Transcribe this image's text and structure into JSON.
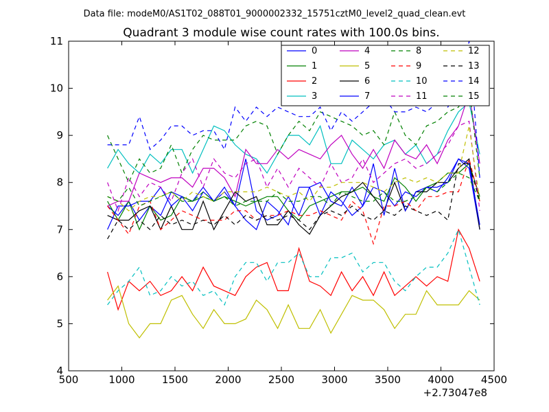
{
  "chart_data": {
    "type": "line",
    "suptitle": "Data file: modeM0/AS1T02_088T01_9000002332_15751cztM0_level2_quad_clean.evt",
    "title": "Quadrant 3 module wise count rates with 100.0s bins.",
    "xlabel": "",
    "ylabel": "",
    "x_offset_label": "+2.73047e8",
    "xlim": [
      500,
      4500
    ],
    "ylim": [
      4,
      11
    ],
    "xticks": [
      500,
      1000,
      1500,
      2000,
      2500,
      3000,
      3500,
      4000,
      4500
    ],
    "yticks": [
      4,
      5,
      6,
      7,
      8,
      9,
      10,
      11
    ],
    "legend_position": "top-right",
    "legend_columns": 4,
    "x": [
      865,
      965,
      1065,
      1165,
      1265,
      1365,
      1465,
      1565,
      1665,
      1765,
      1865,
      1965,
      2065,
      2165,
      2265,
      2365,
      2465,
      2565,
      2665,
      2765,
      2865,
      2965,
      3065,
      3165,
      3265,
      3365,
      3465,
      3565,
      3665,
      3765,
      3865,
      3965,
      4065,
      4165,
      4265,
      4365
    ],
    "series": [
      {
        "name": "0",
        "color": "#0000ff",
        "dash": "solid",
        "values": [
          7.5,
          7.3,
          7.6,
          7.2,
          7.5,
          7.3,
          7.8,
          7.7,
          7.6,
          7.9,
          7.6,
          7.9,
          7.5,
          8.5,
          7.4,
          7.2,
          7.3,
          7.7,
          7.3,
          7.9,
          8.0,
          7.6,
          7.5,
          7.9,
          7.5,
          7.9,
          7.8,
          7.5,
          7.8,
          7.7,
          7.9,
          7.8,
          8.1,
          8.5,
          8.3,
          7.0
        ]
      },
      {
        "name": "1",
        "color": "#008000",
        "dash": "solid",
        "values": [
          7.6,
          7.2,
          7.6,
          7.0,
          7.5,
          7.2,
          7.3,
          7.7,
          7.6,
          7.7,
          7.6,
          7.7,
          7.6,
          7.5,
          7.6,
          7.7,
          7.7,
          7.4,
          7.2,
          7.5,
          7.6,
          7.7,
          7.8,
          7.8,
          7.9,
          7.7,
          7.6,
          8.1,
          7.9,
          7.6,
          7.9,
          8.0,
          8.2,
          8.2,
          8.4,
          7.7
        ]
      },
      {
        "name": "2",
        "color": "#ff0000",
        "dash": "solid",
        "values": [
          6.1,
          5.3,
          5.9,
          5.7,
          5.9,
          5.6,
          5.7,
          6.0,
          5.7,
          6.2,
          5.8,
          5.7,
          5.6,
          6.0,
          6.2,
          6.3,
          5.7,
          5.7,
          6.6,
          5.9,
          5.8,
          5.6,
          6.1,
          5.7,
          6.0,
          5.6,
          6.1,
          5.6,
          5.8,
          6.0,
          5.8,
          6.0,
          5.9,
          7.0,
          6.6,
          5.9
        ]
      },
      {
        "name": "3",
        "color": "#00bfbf",
        "dash": "solid",
        "values": [
          8.3,
          8.7,
          8.4,
          8.2,
          8.6,
          8.4,
          8.7,
          8.7,
          8.2,
          8.7,
          9.2,
          9.1,
          8.8,
          8.6,
          8.5,
          8.2,
          8.6,
          9.0,
          9.0,
          8.8,
          9.2,
          8.4,
          8.4,
          8.9,
          8.7,
          8.5,
          8.8,
          8.9,
          8.6,
          8.8,
          8.4,
          8.6,
          9.1,
          9.5,
          9.7,
          8.6
        ]
      },
      {
        "name": "4",
        "color": "#bf00bf",
        "dash": "solid",
        "values": [
          7.5,
          7.6,
          7.6,
          8.2,
          8.1,
          8.0,
          8.1,
          8.1,
          7.9,
          8.3,
          8.3,
          8.1,
          7.7,
          8.7,
          8.4,
          8.4,
          8.7,
          8.5,
          8.7,
          8.6,
          8.5,
          8.8,
          9.0,
          8.6,
          8.3,
          8.7,
          8.3,
          8.9,
          8.6,
          8.5,
          8.8,
          8.4,
          8.9,
          9.2,
          9.9,
          8.4
        ]
      },
      {
        "name": "5",
        "color": "#bfbf00",
        "dash": "solid",
        "values": [
          5.5,
          5.8,
          5.0,
          4.7,
          5.0,
          5.0,
          5.5,
          5.6,
          5.2,
          4.9,
          5.3,
          5.0,
          5.0,
          5.1,
          5.5,
          5.3,
          4.9,
          5.4,
          4.9,
          4.9,
          5.3,
          4.8,
          5.2,
          5.6,
          5.5,
          5.5,
          5.3,
          4.9,
          5.2,
          5.2,
          5.7,
          5.4,
          5.4,
          5.4,
          5.7,
          5.5
        ]
      },
      {
        "name": "6",
        "color": "#000000",
        "dash": "solid",
        "values": [
          7.3,
          7.2,
          7.2,
          7.4,
          7.5,
          7.0,
          7.5,
          7.0,
          7.0,
          7.6,
          7.0,
          7.4,
          7.8,
          7.6,
          7.7,
          7.1,
          7.1,
          7.4,
          7.1,
          6.9,
          7.3,
          7.5,
          7.7,
          7.8,
          8.0,
          7.7,
          7.4,
          8.0,
          7.4,
          7.8,
          7.8,
          8.0,
          8.0,
          8.3,
          8.5,
          7.0
        ]
      },
      {
        "name": "7",
        "color": "#0000ff",
        "dash": "solid",
        "values": [
          7.0,
          7.5,
          7.5,
          7.6,
          7.6,
          7.9,
          7.5,
          7.7,
          7.4,
          7.8,
          7.6,
          7.8,
          7.5,
          7.2,
          7.0,
          7.6,
          7.4,
          7.1,
          7.9,
          7.9,
          7.3,
          7.8,
          7.6,
          7.3,
          7.5,
          8.4,
          7.3,
          8.3,
          7.4,
          7.8,
          7.9,
          7.9,
          8.0,
          8.5,
          8.4,
          7.1
        ]
      },
      {
        "name": "8",
        "color": "#008000",
        "dash": "dashed",
        "values": [
          9.0,
          8.5,
          8.0,
          8.5,
          8.2,
          8.3,
          8.8,
          8.2,
          8.7,
          9.0,
          8.9,
          8.9,
          8.9,
          9.2,
          9.3,
          9.2,
          8.6,
          9.0,
          9.3,
          9.1,
          9.5,
          9.4,
          9.3,
          9.2,
          9.0,
          9.1,
          8.8,
          9.5,
          9.0,
          8.8,
          9.2,
          9.3,
          9.5,
          9.6,
          10.0,
          8.1
        ]
      },
      {
        "name": "9",
        "color": "#ff0000",
        "dash": "dashed",
        "values": [
          7.5,
          7.2,
          6.9,
          7.5,
          7.6,
          7.0,
          7.2,
          7.4,
          7.3,
          7.2,
          7.2,
          7.2,
          7.4,
          7.4,
          7.2,
          7.3,
          7.3,
          7.4,
          7.3,
          7.3,
          7.4,
          7.3,
          7.2,
          7.6,
          7.4,
          6.7,
          7.5,
          7.5,
          7.6,
          7.4,
          7.7,
          7.7,
          7.8,
          7.8,
          8.5,
          7.6
        ]
      },
      {
        "name": "10",
        "color": "#00bfbf",
        "dash": "dashed",
        "values": [
          5.4,
          5.7,
          5.9,
          6.2,
          5.6,
          5.7,
          6.0,
          5.8,
          5.9,
          5.6,
          5.7,
          5.4,
          6.0,
          6.3,
          6.3,
          5.9,
          6.3,
          6.3,
          6.5,
          6.0,
          6.0,
          6.4,
          6.4,
          6.5,
          6.1,
          6.3,
          6.3,
          5.9,
          5.7,
          6.0,
          6.2,
          6.2,
          6.5,
          7.0,
          6.2,
          5.4
        ]
      },
      {
        "name": "11",
        "color": "#bf00bf",
        "dash": "dashed",
        "values": [
          8.0,
          7.4,
          8.1,
          7.7,
          8.0,
          7.9,
          7.6,
          8.2,
          8.5,
          7.9,
          8.5,
          8.2,
          8.1,
          8.4,
          8.5,
          7.9,
          8.3,
          7.9,
          8.3,
          8.1,
          7.9,
          8.4,
          8.0,
          8.1,
          8.5,
          8.0,
          8.2,
          8.4,
          8.5,
          8.3,
          8.4,
          8.6,
          8.8,
          9.2,
          9.3,
          7.4
        ]
      },
      {
        "name": "12",
        "color": "#bfbf00",
        "dash": "dashed",
        "values": [
          7.7,
          7.6,
          7.4,
          7.6,
          7.7,
          7.7,
          7.8,
          7.6,
          7.8,
          7.7,
          7.6,
          7.8,
          7.8,
          7.8,
          7.8,
          7.9,
          7.8,
          7.7,
          7.8,
          7.6,
          7.9,
          7.9,
          8.0,
          8.0,
          8.0,
          7.9,
          7.8,
          8.0,
          8.1,
          8.0,
          8.1,
          8.0,
          8.2,
          8.2,
          9.2,
          7.6
        ]
      },
      {
        "name": "13",
        "color": "#000000",
        "dash": "dashed",
        "values": [
          6.8,
          7.2,
          7.0,
          7.2,
          7.0,
          7.3,
          7.1,
          7.2,
          7.1,
          7.2,
          7.1,
          7.3,
          7.1,
          7.3,
          7.2,
          7.3,
          7.2,
          7.3,
          7.2,
          7.0,
          7.3,
          7.4,
          7.3,
          7.5,
          7.3,
          7.2,
          7.4,
          7.3,
          7.5,
          7.4,
          7.3,
          7.4,
          7.2,
          8.4,
          8.4,
          7.6
        ]
      },
      {
        "name": "14",
        "color": "#0000ff",
        "dash": "dashed",
        "values": [
          8.8,
          8.8,
          8.8,
          9.4,
          8.7,
          8.9,
          9.2,
          9.2,
          9.0,
          9.1,
          9.1,
          8.7,
          9.6,
          9.3,
          9.6,
          9.4,
          9.6,
          9.5,
          9.4,
          9.4,
          9.6,
          9.1,
          9.5,
          9.3,
          9.5,
          9.7,
          9.8,
          9.5,
          9.5,
          9.6,
          9.5,
          9.7,
          9.6,
          10.0,
          11.0,
          8.1
        ]
      },
      {
        "name": "15",
        "color": "#008000",
        "dash": "dashed",
        "values": [
          7.7,
          7.6,
          7.9,
          7.5,
          7.6,
          7.7,
          7.8,
          7.6,
          7.6,
          7.8,
          7.6,
          7.7,
          7.5,
          7.6,
          7.6,
          7.6,
          7.8,
          7.6,
          7.6,
          7.7,
          7.7,
          7.5,
          7.8,
          7.7,
          7.6,
          7.6,
          7.8,
          7.6,
          7.6,
          7.7,
          7.9,
          7.8,
          8.0,
          8.2,
          8.1,
          7.6
        ]
      }
    ]
  }
}
